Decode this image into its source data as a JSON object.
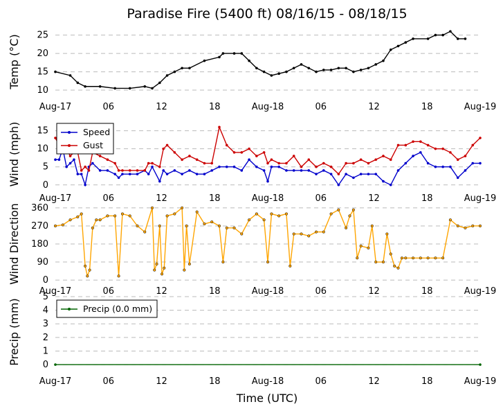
{
  "title": "Paradise Fire (5400 ft) 08/16/15 - 08/18/15",
  "xlabel": "Time (UTC)",
  "x_tick_labels": [
    "Aug-17",
    "06",
    "12",
    "18",
    "Aug-18",
    "06",
    "12",
    "18",
    "Aug-19"
  ],
  "colors": {
    "temp": "#000000",
    "speed": "#0000cc",
    "gust": "#cc0000",
    "direction": "#ffa500",
    "precip": "#006400",
    "grid": "#bbbbbb"
  },
  "chart_data": [
    {
      "type": "line",
      "ylabel": "Temp ($^\\circ$C)",
      "ylabel_display": "Temp (°C)",
      "ylim": [
        8.5,
        27
      ],
      "yticks": [
        10,
        15,
        20,
        25
      ],
      "xlim_hours": [
        0,
        48
      ],
      "grid": true,
      "series": [
        {
          "key": "temp",
          "values": [
            [
              0,
              15
            ],
            [
              2,
              14
            ],
            [
              3,
              12
            ],
            [
              4,
              11
            ],
            [
              6,
              11
            ],
            [
              8,
              10.5
            ],
            [
              10,
              10.5
            ],
            [
              12,
              11
            ],
            [
              13,
              10.5
            ],
            [
              14,
              12
            ],
            [
              15,
              14
            ],
            [
              16,
              15
            ],
            [
              17,
              16
            ],
            [
              18,
              16
            ],
            [
              20,
              18
            ],
            [
              22,
              19
            ],
            [
              22.5,
              20
            ],
            [
              24,
              20
            ],
            [
              25,
              20
            ],
            [
              26,
              18
            ],
            [
              27,
              16
            ],
            [
              28,
              15
            ],
            [
              29,
              14
            ],
            [
              30,
              14.5
            ],
            [
              31,
              15
            ],
            [
              32,
              16
            ],
            [
              33,
              17
            ],
            [
              34,
              16
            ],
            [
              35,
              15
            ],
            [
              36,
              15.5
            ],
            [
              37,
              15.5
            ],
            [
              38,
              16
            ],
            [
              39,
              16
            ],
            [
              40,
              15
            ],
            [
              41,
              15.5
            ],
            [
              42,
              16
            ],
            [
              43,
              17
            ],
            [
              44,
              18
            ],
            [
              45,
              21
            ],
            [
              46,
              22
            ],
            [
              47,
              23
            ],
            [
              48,
              24
            ],
            [
              50,
              24
            ],
            [
              51,
              25
            ],
            [
              52,
              25
            ],
            [
              53,
              26
            ],
            [
              54,
              24
            ],
            [
              55,
              24
            ]
          ]
        }
      ]
    },
    {
      "type": "line",
      "ylabel": "Wind (mph)",
      "ylim": [
        -1,
        18
      ],
      "yticks": [
        0,
        5,
        10,
        15
      ],
      "grid": true,
      "legend": "upper-left",
      "series": [
        {
          "key": "speed",
          "name": "Speed",
          "values": [
            [
              0,
              7
            ],
            [
              0.5,
              7
            ],
            [
              1,
              10
            ],
            [
              1.5,
              5
            ],
            [
              2,
              6
            ],
            [
              2.5,
              7
            ],
            [
              3,
              3
            ],
            [
              3.5,
              3
            ],
            [
              4,
              0
            ],
            [
              4.5,
              5
            ],
            [
              5,
              6
            ],
            [
              6,
              4
            ],
            [
              7,
              4
            ],
            [
              8,
              3
            ],
            [
              8.5,
              2
            ],
            [
              9,
              3
            ],
            [
              10,
              3
            ],
            [
              11,
              3
            ],
            [
              12,
              4
            ],
            [
              12.5,
              3
            ],
            [
              13,
              5
            ],
            [
              14,
              1
            ],
            [
              14.5,
              4
            ],
            [
              15,
              3
            ],
            [
              16,
              4
            ],
            [
              17,
              3
            ],
            [
              18,
              4
            ],
            [
              19,
              3
            ],
            [
              20,
              3
            ],
            [
              21,
              4
            ],
            [
              22,
              5
            ],
            [
              23,
              5
            ],
            [
              24,
              5
            ],
            [
              25,
              4
            ],
            [
              26,
              7
            ],
            [
              27,
              5
            ],
            [
              28,
              4
            ],
            [
              28.5,
              1
            ],
            [
              29,
              5
            ],
            [
              30,
              5
            ],
            [
              31,
              4
            ],
            [
              32,
              4
            ],
            [
              33,
              4
            ],
            [
              34,
              4
            ],
            [
              35,
              3
            ],
            [
              36,
              4
            ],
            [
              37,
              3
            ],
            [
              38,
              0
            ],
            [
              39,
              3
            ],
            [
              40,
              2
            ],
            [
              41,
              3
            ],
            [
              42,
              3
            ],
            [
              43,
              3
            ],
            [
              44,
              1
            ],
            [
              45,
              0
            ],
            [
              46,
              4
            ],
            [
              47,
              6
            ],
            [
              48,
              8
            ],
            [
              49,
              9
            ],
            [
              50,
              6
            ],
            [
              51,
              5
            ],
            [
              52,
              5
            ],
            [
              53,
              5
            ],
            [
              54,
              2
            ],
            [
              55,
              4
            ],
            [
              56,
              6
            ],
            [
              57,
              6
            ]
          ]
        },
        {
          "key": "gust",
          "name": "Gust",
          "values": [
            [
              0,
              13
            ],
            [
              0.5,
              11
            ],
            [
              1,
              12
            ],
            [
              1.5,
              10
            ],
            [
              2,
              8
            ],
            [
              2.5,
              9
            ],
            [
              3,
              9
            ],
            [
              3.5,
              4
            ],
            [
              4,
              5
            ],
            [
              4.5,
              4
            ],
            [
              5,
              9
            ],
            [
              6,
              8
            ],
            [
              7,
              7
            ],
            [
              8,
              6
            ],
            [
              8.5,
              4
            ],
            [
              9,
              4
            ],
            [
              10,
              4
            ],
            [
              11,
              4
            ],
            [
              12,
              4
            ],
            [
              12.5,
              6
            ],
            [
              13,
              6
            ],
            [
              14,
              5
            ],
            [
              14.5,
              10
            ],
            [
              15,
              11
            ],
            [
              16,
              9
            ],
            [
              17,
              7
            ],
            [
              18,
              8
            ],
            [
              19,
              7
            ],
            [
              20,
              6
            ],
            [
              21,
              6
            ],
            [
              22,
              16
            ],
            [
              23,
              11
            ],
            [
              24,
              9
            ],
            [
              25,
              9
            ],
            [
              26,
              10
            ],
            [
              27,
              8
            ],
            [
              28,
              9
            ],
            [
              28.5,
              6
            ],
            [
              29,
              7
            ],
            [
              30,
              6
            ],
            [
              31,
              6
            ],
            [
              32,
              8
            ],
            [
              33,
              5
            ],
            [
              34,
              7
            ],
            [
              35,
              5
            ],
            [
              36,
              6
            ],
            [
              37,
              5
            ],
            [
              38,
              3
            ],
            [
              39,
              6
            ],
            [
              40,
              6
            ],
            [
              41,
              7
            ],
            [
              42,
              6
            ],
            [
              43,
              7
            ],
            [
              44,
              8
            ],
            [
              45,
              7
            ],
            [
              46,
              11
            ],
            [
              47,
              11
            ],
            [
              48,
              12
            ],
            [
              49,
              12
            ],
            [
              50,
              11
            ],
            [
              51,
              10
            ],
            [
              52,
              10
            ],
            [
              53,
              9
            ],
            [
              54,
              7
            ],
            [
              55,
              8
            ],
            [
              56,
              11
            ],
            [
              57,
              13
            ]
          ]
        }
      ]
    },
    {
      "type": "scatter",
      "ylabel": "Wind Direction",
      "ylim": [
        -10,
        370
      ],
      "yticks": [
        0,
        90,
        180,
        270,
        360
      ],
      "grid": true,
      "series": [
        {
          "key": "direction",
          "values": [
            [
              0,
              270
            ],
            [
              1,
              275
            ],
            [
              2,
              300
            ],
            [
              3,
              315
            ],
            [
              3.5,
              330
            ],
            [
              4,
              70
            ],
            [
              4.3,
              20
            ],
            [
              4.6,
              50
            ],
            [
              5,
              260
            ],
            [
              5.5,
              300
            ],
            [
              6,
              300
            ],
            [
              7,
              320
            ],
            [
              8,
              320
            ],
            [
              8.5,
              20
            ],
            [
              9,
              330
            ],
            [
              10,
              320
            ],
            [
              11,
              270
            ],
            [
              12,
              240
            ],
            [
              13,
              360
            ],
            [
              13.3,
              50
            ],
            [
              13.6,
              80
            ],
            [
              14,
              270
            ],
            [
              14.3,
              30
            ],
            [
              14.6,
              60
            ],
            [
              15,
              320
            ],
            [
              16,
              330
            ],
            [
              17,
              360
            ],
            [
              17.3,
              50
            ],
            [
              17.6,
              270
            ],
            [
              18,
              80
            ],
            [
              19,
              340
            ],
            [
              20,
              280
            ],
            [
              21,
              290
            ],
            [
              22,
              270
            ],
            [
              22.5,
              90
            ],
            [
              23,
              260
            ],
            [
              24,
              260
            ],
            [
              25,
              230
            ],
            [
              26,
              300
            ],
            [
              27,
              330
            ],
            [
              28,
              300
            ],
            [
              28.5,
              90
            ],
            [
              29,
              330
            ],
            [
              30,
              320
            ],
            [
              31,
              330
            ],
            [
              31.5,
              70
            ],
            [
              32,
              230
            ],
            [
              33,
              230
            ],
            [
              34,
              220
            ],
            [
              35,
              240
            ],
            [
              36,
              240
            ],
            [
              37,
              330
            ],
            [
              38,
              350
            ],
            [
              39,
              260
            ],
            [
              39.5,
              320
            ],
            [
              40,
              350
            ],
            [
              40.5,
              110
            ],
            [
              41,
              170
            ],
            [
              42,
              160
            ],
            [
              42.5,
              270
            ],
            [
              43,
              90
            ],
            [
              44,
              90
            ],
            [
              44.5,
              230
            ],
            [
              45,
              130
            ],
            [
              45.5,
              70
            ],
            [
              46,
              60
            ],
            [
              46.5,
              110
            ],
            [
              47,
              110
            ],
            [
              48,
              110
            ],
            [
              49,
              110
            ],
            [
              50,
              110
            ],
            [
              51,
              110
            ],
            [
              52,
              110
            ],
            [
              53,
              300
            ],
            [
              54,
              270
            ],
            [
              55,
              260
            ],
            [
              56,
              270
            ],
            [
              57,
              270
            ]
          ]
        }
      ]
    },
    {
      "type": "line",
      "ylabel": "Precip (mm)",
      "ylim": [
        -0.2,
        5
      ],
      "yticks": [
        0,
        1,
        2,
        3,
        4,
        5
      ],
      "grid": true,
      "legend": "upper-left",
      "series": [
        {
          "key": "precip",
          "name": "Precip (0.0 mm)",
          "values": [
            [
              0,
              0
            ],
            [
              57,
              0
            ]
          ]
        }
      ]
    }
  ]
}
